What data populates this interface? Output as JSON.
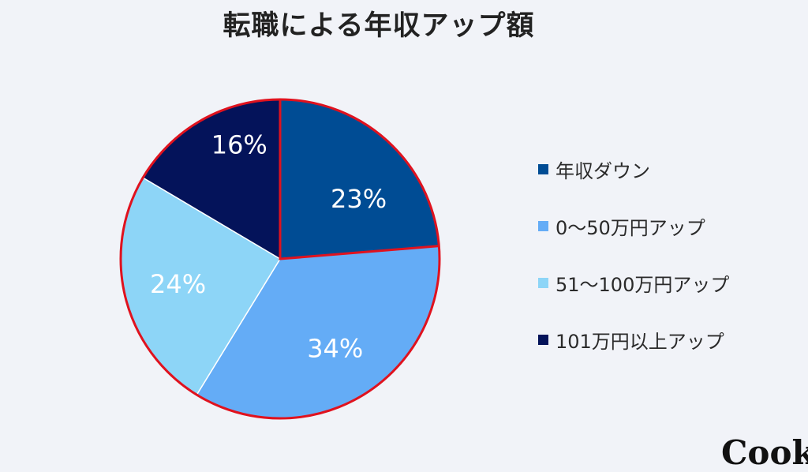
{
  "chart_data": {
    "type": "pie",
    "title": "転職による年収アップ額",
    "categories": [
      "年収ダウン",
      "0〜50万円アップ",
      "51〜100万円アップ",
      "101万円以上アップ"
    ],
    "values": [
      23,
      34,
      24,
      16
    ],
    "value_labels": [
      "23%",
      "34%",
      "24%",
      "16%"
    ],
    "colors": [
      "#004c94",
      "#64acf6",
      "#8dd5f7",
      "#04135a"
    ],
    "start_angle_deg": 0,
    "direction": "clockwise",
    "legend_position": "right",
    "outline_color": "#e0121e"
  },
  "watermark": "Cook"
}
